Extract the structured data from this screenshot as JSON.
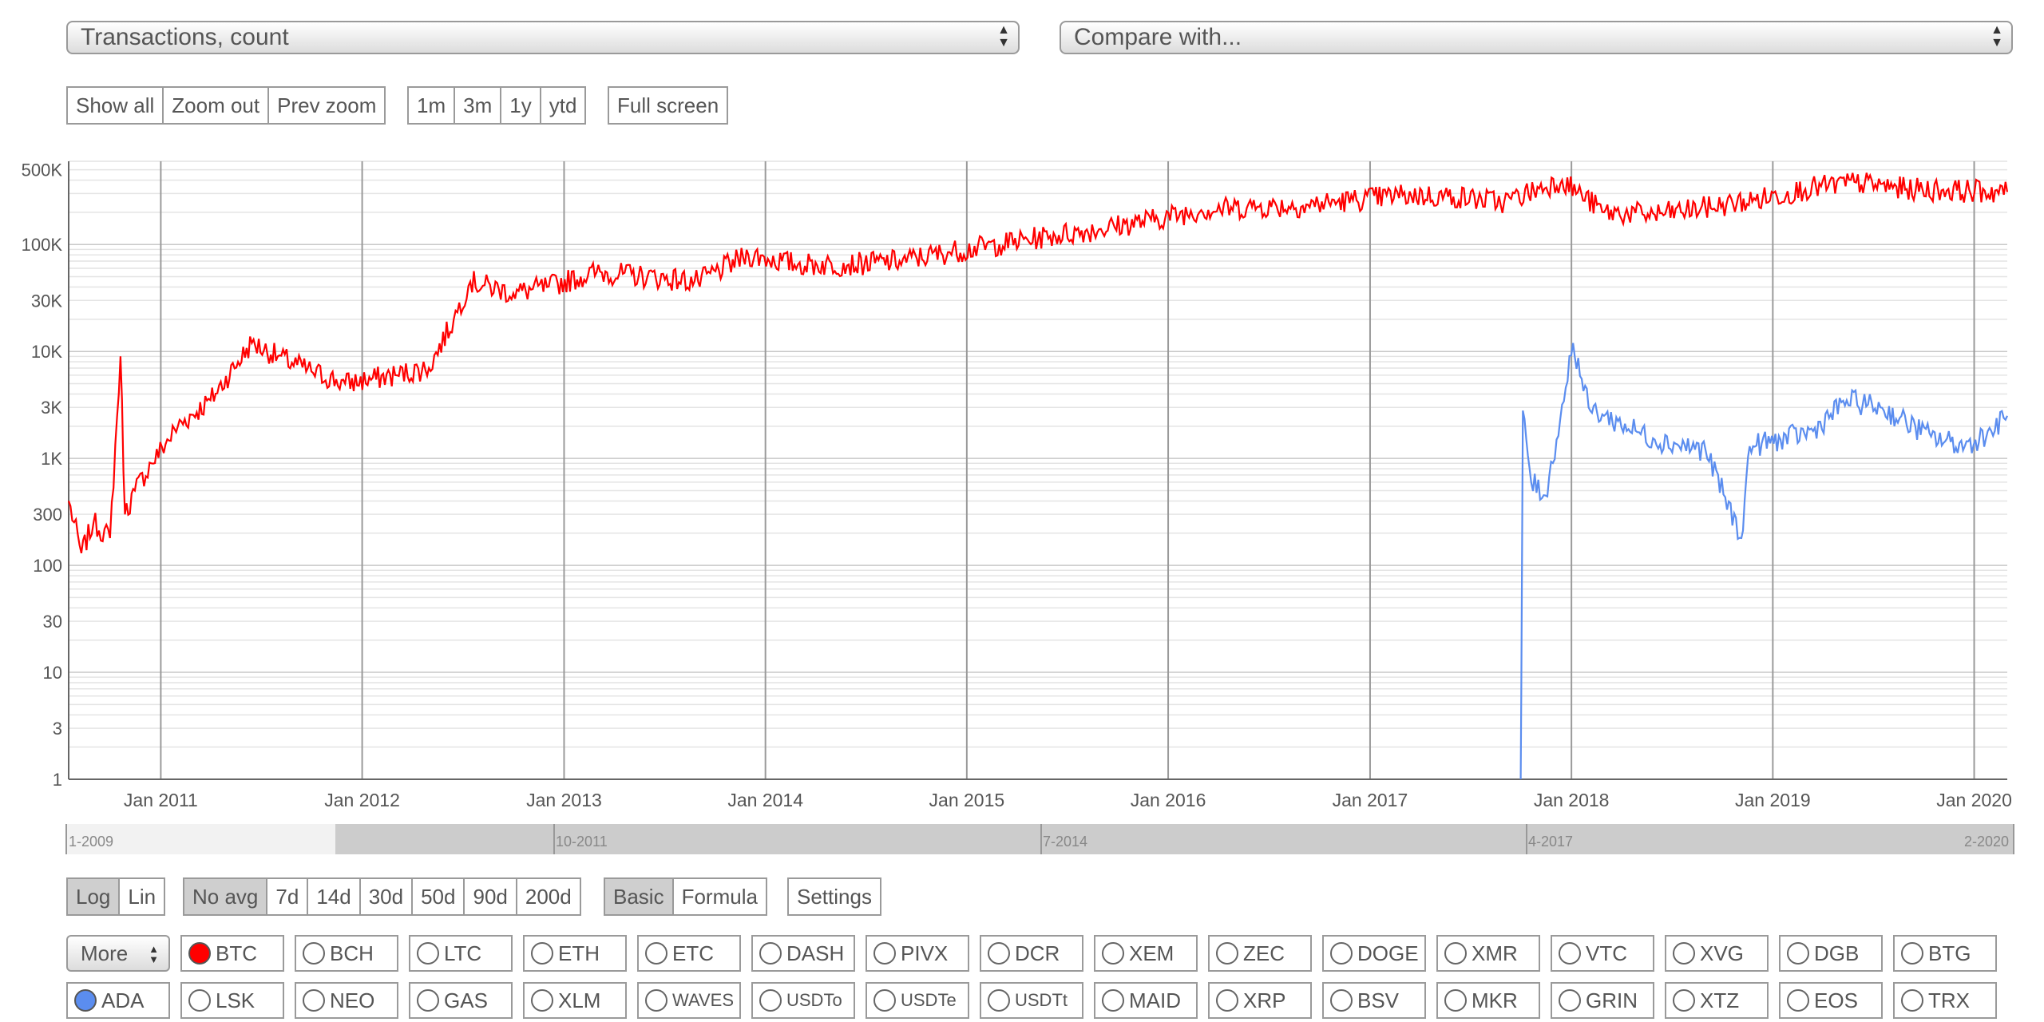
{
  "selectors": {
    "metric": "Transactions, count",
    "compare": "Compare with..."
  },
  "zoom_controls": [
    "Show all",
    "Zoom out",
    "Prev zoom"
  ],
  "range_controls": [
    "1m",
    "3m",
    "1y",
    "ytd"
  ],
  "fullscreen_label": "Full screen",
  "scale_controls": [
    {
      "label": "Log",
      "active": true
    },
    {
      "label": "Lin",
      "active": false
    }
  ],
  "avg_controls": [
    {
      "label": "No avg",
      "active": true
    },
    {
      "label": "7d",
      "active": false
    },
    {
      "label": "14d",
      "active": false
    },
    {
      "label": "30d",
      "active": false
    },
    {
      "label": "50d",
      "active": false
    },
    {
      "label": "90d",
      "active": false
    },
    {
      "label": "200d",
      "active": false
    }
  ],
  "mode_controls": [
    {
      "label": "Basic",
      "active": true
    },
    {
      "label": "Formula",
      "active": false
    }
  ],
  "settings_label": "Settings",
  "more_label": "More",
  "navigator_labels": [
    "1-2009",
    "10-2011",
    "7-2014",
    "4-2017",
    "2-2020"
  ],
  "coins_row1": [
    {
      "label": "BTC",
      "selected": true,
      "color": "#ff0000"
    },
    {
      "label": "BCH"
    },
    {
      "label": "LTC"
    },
    {
      "label": "ETH"
    },
    {
      "label": "ETC"
    },
    {
      "label": "DASH"
    },
    {
      "label": "PIVX"
    },
    {
      "label": "DCR"
    },
    {
      "label": "XEM"
    },
    {
      "label": "ZEC"
    },
    {
      "label": "DOGE"
    },
    {
      "label": "XMR"
    },
    {
      "label": "VTC"
    },
    {
      "label": "XVG"
    },
    {
      "label": "DGB"
    },
    {
      "label": "BTG"
    }
  ],
  "coins_row2": [
    {
      "label": "ADA",
      "selected": true,
      "color": "#5b8def"
    },
    {
      "label": "LSK"
    },
    {
      "label": "NEO"
    },
    {
      "label": "GAS"
    },
    {
      "label": "XLM"
    },
    {
      "label": "WAVES",
      "small": true
    },
    {
      "label": "USDTo",
      "small": true
    },
    {
      "label": "USDTe",
      "small": true
    },
    {
      "label": "USDTt",
      "small": true
    },
    {
      "label": "MAID"
    },
    {
      "label": "XRP"
    },
    {
      "label": "BSV"
    },
    {
      "label": "MKR"
    },
    {
      "label": "GRIN"
    },
    {
      "label": "XTZ"
    },
    {
      "label": "EOS"
    },
    {
      "label": "TRX"
    }
  ],
  "chart_data": {
    "type": "line",
    "yscale": "log",
    "ylim": [
      1,
      600000
    ],
    "xlim": [
      "2010-07-18",
      "2020-03-01"
    ],
    "y_ticks": [
      {
        "label": "1",
        "value": 1
      },
      {
        "label": "3",
        "value": 3
      },
      {
        "label": "10",
        "value": 10
      },
      {
        "label": "30",
        "value": 30
      },
      {
        "label": "100",
        "value": 100
      },
      {
        "label": "300",
        "value": 300
      },
      {
        "label": "1K",
        "value": 1000
      },
      {
        "label": "3K",
        "value": 3000
      },
      {
        "label": "10K",
        "value": 10000
      },
      {
        "label": "30K",
        "value": 30000
      },
      {
        "label": "100K",
        "value": 100000
      },
      {
        "label": "500K",
        "value": 500000
      }
    ],
    "x_ticks": [
      {
        "label": "Jan 2011",
        "value": "2011-01-01"
      },
      {
        "label": "Jan 2012",
        "value": "2012-01-01"
      },
      {
        "label": "Jan 2013",
        "value": "2013-01-01"
      },
      {
        "label": "Jan 2014",
        "value": "2014-01-01"
      },
      {
        "label": "Jan 2015",
        "value": "2015-01-01"
      },
      {
        "label": "Jan 2016",
        "value": "2016-01-01"
      },
      {
        "label": "Jan 2017",
        "value": "2017-01-01"
      },
      {
        "label": "Jan 2018",
        "value": "2018-01-01"
      },
      {
        "label": "Jan 2019",
        "value": "2019-01-01"
      },
      {
        "label": "Jan 2020",
        "value": "2020-01-01"
      }
    ],
    "series": [
      {
        "name": "BTC",
        "color": "#ff0000",
        "points": [
          [
            "2010-07-18",
            400
          ],
          [
            "2010-08-10",
            130
          ],
          [
            "2010-09-01",
            250
          ],
          [
            "2010-10-01",
            180
          ],
          [
            "2010-10-20",
            9000
          ],
          [
            "2010-10-28",
            300
          ],
          [
            "2010-11-15",
            500
          ],
          [
            "2010-12-15",
            900
          ],
          [
            "2011-02-01",
            2000
          ],
          [
            "2011-04-01",
            3500
          ],
          [
            "2011-06-15",
            12000
          ],
          [
            "2011-08-01",
            9000
          ],
          [
            "2011-10-01",
            6500
          ],
          [
            "2011-12-01",
            5000
          ],
          [
            "2012-03-01",
            6000
          ],
          [
            "2012-05-01",
            7000
          ],
          [
            "2012-06-15",
            20000
          ],
          [
            "2012-07-15",
            45000
          ],
          [
            "2012-10-01",
            35000
          ],
          [
            "2012-12-01",
            40000
          ],
          [
            "2013-03-01",
            55000
          ],
          [
            "2013-06-01",
            50000
          ],
          [
            "2013-09-01",
            45000
          ],
          [
            "2013-12-01",
            80000
          ],
          [
            "2014-03-01",
            65000
          ],
          [
            "2014-06-01",
            65000
          ],
          [
            "2014-09-01",
            70000
          ],
          [
            "2014-12-01",
            85000
          ],
          [
            "2015-03-01",
            100000
          ],
          [
            "2015-06-01",
            120000
          ],
          [
            "2015-09-01",
            140000
          ],
          [
            "2015-12-01",
            170000
          ],
          [
            "2016-03-01",
            210000
          ],
          [
            "2016-06-01",
            225000
          ],
          [
            "2016-09-01",
            230000
          ],
          [
            "2016-12-01",
            260000
          ],
          [
            "2017-03-01",
            290000
          ],
          [
            "2017-06-01",
            280000
          ],
          [
            "2017-09-01",
            250000
          ],
          [
            "2017-12-15",
            400000
          ],
          [
            "2018-03-01",
            200000
          ],
          [
            "2018-06-01",
            190000
          ],
          [
            "2018-09-01",
            220000
          ],
          [
            "2018-12-01",
            260000
          ],
          [
            "2019-03-01",
            330000
          ],
          [
            "2019-06-01",
            380000
          ],
          [
            "2019-09-01",
            330000
          ],
          [
            "2019-12-01",
            320000
          ],
          [
            "2020-03-01",
            310000
          ]
        ]
      },
      {
        "name": "ADA",
        "color": "#5b8def",
        "points": [
          [
            "2017-10-01",
            1
          ],
          [
            "2017-10-02",
            6
          ],
          [
            "2017-10-05",
            2800
          ],
          [
            "2017-10-20",
            600
          ],
          [
            "2017-11-15",
            450
          ],
          [
            "2017-12-05",
            1500
          ],
          [
            "2018-01-04",
            12000
          ],
          [
            "2018-02-01",
            3000
          ],
          [
            "2018-03-01",
            2500
          ],
          [
            "2018-06-01",
            1500
          ],
          [
            "2018-09-01",
            1200
          ],
          [
            "2018-11-05",
            180
          ],
          [
            "2018-11-20",
            1300
          ],
          [
            "2019-01-15",
            1500
          ],
          [
            "2019-03-15",
            1800
          ],
          [
            "2019-05-15",
            3500
          ],
          [
            "2019-07-15",
            3000
          ],
          [
            "2019-10-15",
            1600
          ],
          [
            "2019-12-15",
            1300
          ],
          [
            "2020-02-01",
            1800
          ],
          [
            "2020-03-01",
            2500
          ]
        ]
      }
    ]
  }
}
